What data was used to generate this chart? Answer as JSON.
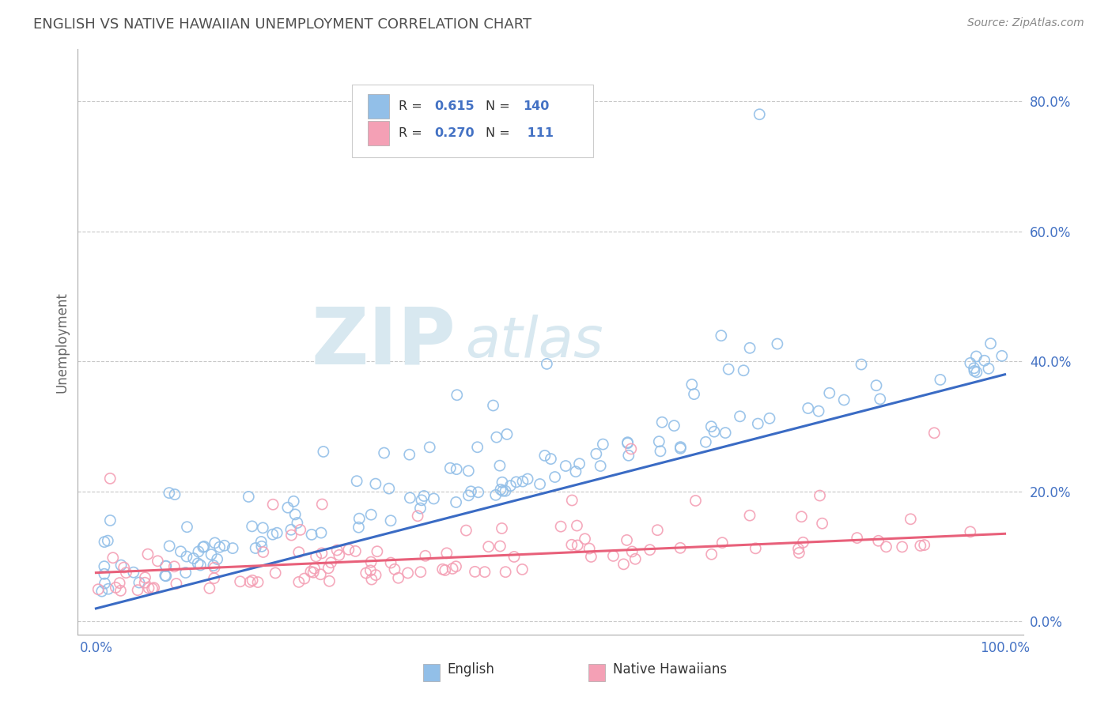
{
  "title": "ENGLISH VS NATIVE HAWAIIAN UNEMPLOYMENT CORRELATION CHART",
  "source": "Source: ZipAtlas.com",
  "ylabel": "Unemployment",
  "xlim": [
    -0.02,
    1.02
  ],
  "ylim": [
    -0.02,
    0.88
  ],
  "x_tick_positions": [
    0.0,
    1.0
  ],
  "x_tick_labels": [
    "0.0%",
    "100.0%"
  ],
  "y_tick_positions": [
    0.0,
    0.2,
    0.4,
    0.6,
    0.8
  ],
  "y_tick_labels": [
    "0.0%",
    "20.0%",
    "40.0%",
    "60.0%",
    "80.0%"
  ],
  "english_R": "0.615",
  "english_N": "140",
  "hawaiian_R": "0.270",
  "hawaiian_N": "111",
  "english_color": "#92BFE8",
  "hawaiian_color": "#F4A0B5",
  "english_line_color": "#3A6BC4",
  "hawaiian_line_color": "#E8607A",
  "background_color": "#FFFFFF",
  "grid_color": "#C8C8C8",
  "title_color": "#505050",
  "tick_color": "#4472C4",
  "legend_text_color": "#333333",
  "legend_R_N_color": "#4472C4",
  "watermark_color": "#D8E8F0",
  "english_line_x0": 0.0,
  "english_line_x1": 1.0,
  "english_line_y0": 0.02,
  "english_line_y1": 0.38,
  "hawaiian_line_x0": 0.0,
  "hawaiian_line_x1": 1.0,
  "hawaiian_line_y0": 0.075,
  "hawaiian_line_y1": 0.135,
  "legend_label_english": "English",
  "legend_label_hawaiian": "Native Hawaiians"
}
